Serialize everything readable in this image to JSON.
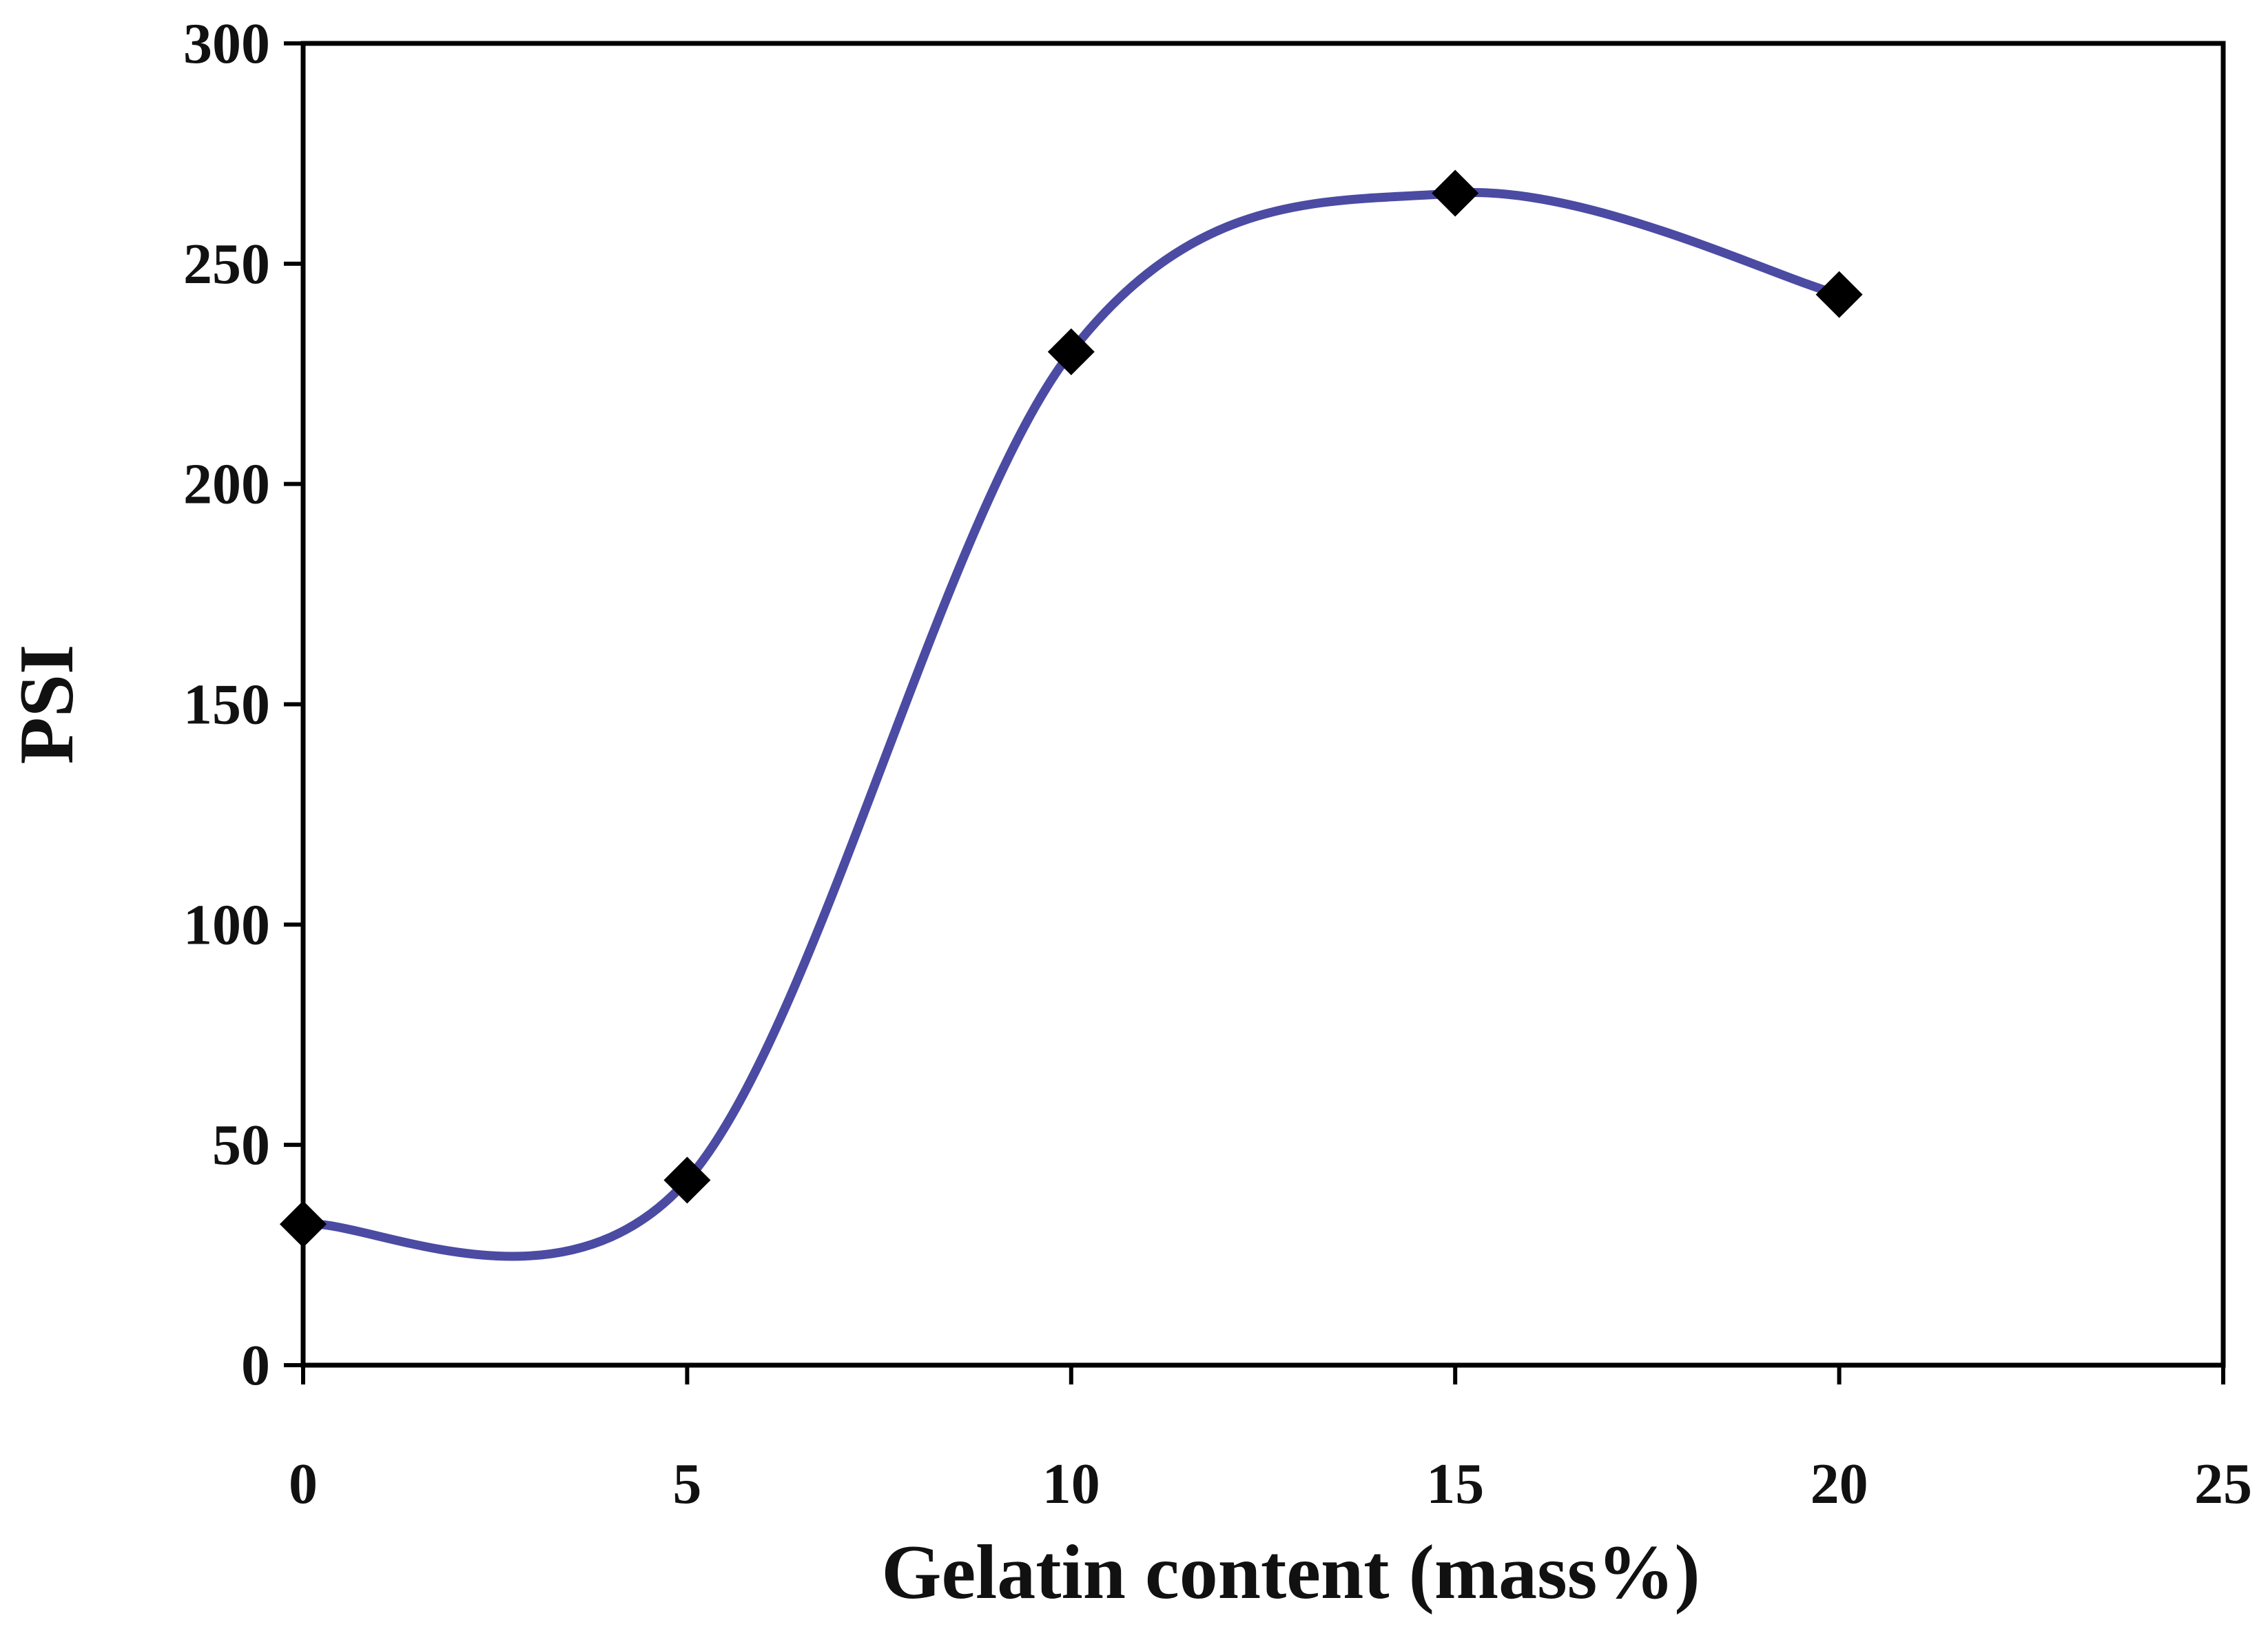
{
  "chart_data": {
    "type": "line",
    "title": "",
    "xlabel": "Gelatin content (mass%)",
    "ylabel": "PSI",
    "xlim": [
      0,
      25
    ],
    "ylim": [
      0,
      300
    ],
    "xticks": [
      0,
      5,
      10,
      15,
      20,
      25
    ],
    "yticks": [
      0,
      50,
      100,
      150,
      200,
      250,
      300
    ],
    "grid": false,
    "legend": "none",
    "smooth": true,
    "series": [
      {
        "x": [
          0,
          5,
          10,
          15,
          20
        ],
        "y": [
          32,
          42,
          230,
          266,
          243
        ],
        "line_color": "#4b4ba3",
        "marker": "diamond",
        "marker_color": "#000000"
      }
    ]
  }
}
